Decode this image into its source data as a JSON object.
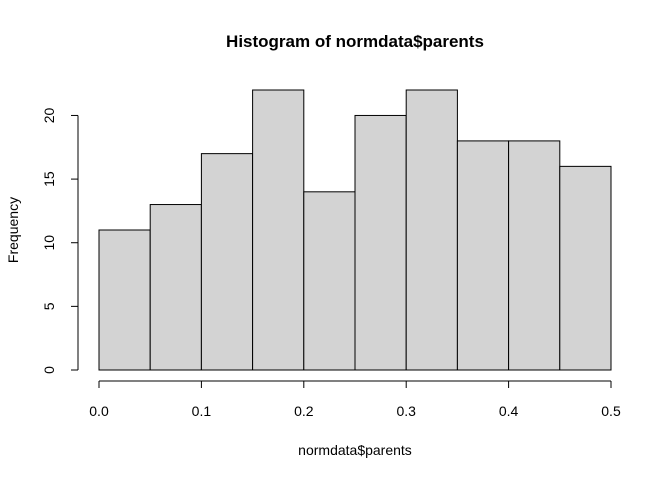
{
  "chart_data": {
    "type": "bar",
    "title": "Histogram of normdata$parents",
    "xlabel": "normdata$parents",
    "ylabel": "Frequency",
    "bin_edges": [
      0.0,
      0.05,
      0.1,
      0.15,
      0.2,
      0.25,
      0.3,
      0.35,
      0.4,
      0.45,
      0.5
    ],
    "values": [
      11,
      13,
      17,
      22,
      14,
      20,
      22,
      18,
      18,
      16
    ],
    "xlim": [
      0.0,
      0.5
    ],
    "ylim": [
      0,
      22
    ],
    "x_ticks": [
      "0.0",
      "0.1",
      "0.2",
      "0.3",
      "0.4",
      "0.5"
    ],
    "y_ticks": [
      "0",
      "5",
      "10",
      "15",
      "20"
    ],
    "grid": false,
    "bar_color": "#d3d3d3"
  }
}
